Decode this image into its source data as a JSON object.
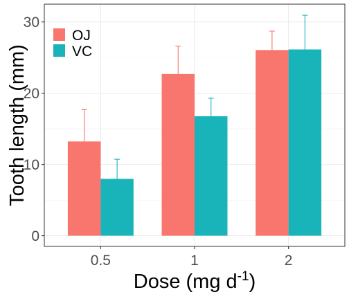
{
  "chart_data": {
    "type": "bar",
    "categories": [
      "0.5",
      "1",
      "2"
    ],
    "series": [
      {
        "name": "OJ",
        "color": "#F8766D",
        "values": [
          13.23,
          22.7,
          26.06
        ],
        "errors": [
          4.46,
          3.91,
          2.66
        ]
      },
      {
        "name": "VC",
        "color": "#19B3BA",
        "values": [
          7.98,
          16.77,
          26.14
        ],
        "errors": [
          2.75,
          2.52,
          4.8
        ]
      }
    ],
    "xlabel": "Dose (mg d",
    "xlabel_superscript": "-1",
    "xlabel_suffix": ")",
    "ylabel": "Tooth length (mm)",
    "ylim": [
      -1.5,
      32.5
    ],
    "yticks": [
      0,
      10,
      20,
      30
    ],
    "ytick_labels": [
      "0",
      "10",
      "20",
      "30"
    ],
    "grid": true,
    "legend_position": "top-left"
  }
}
